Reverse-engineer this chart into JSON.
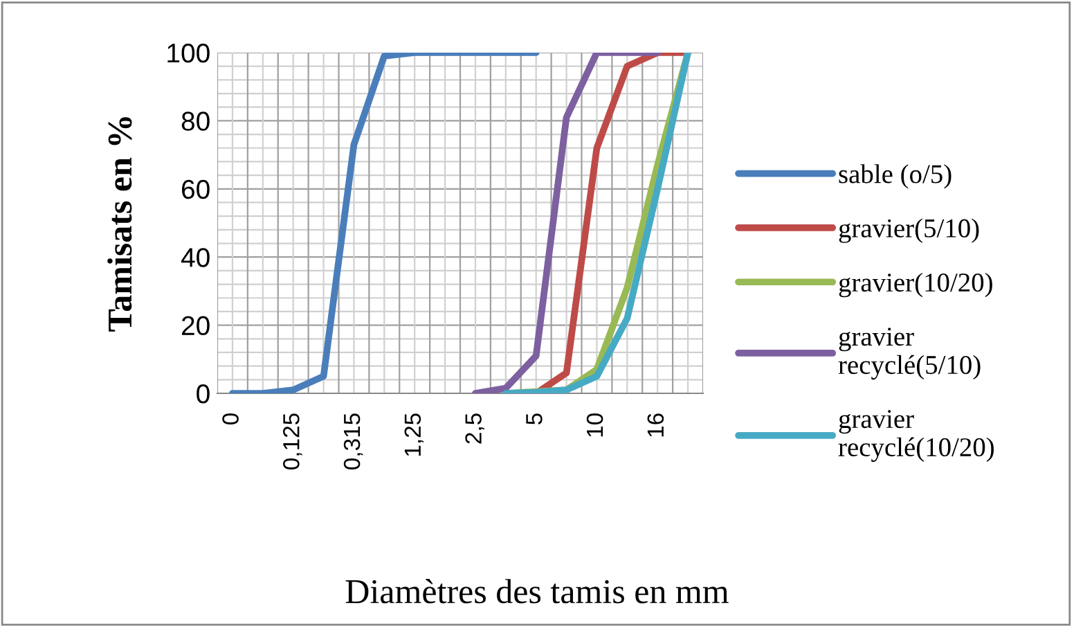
{
  "chart_data": {
    "type": "line",
    "xlabel": "Diamètres des tamis en mm",
    "ylabel": "Tamisats en %",
    "categories": [
      "0",
      null,
      "0,125",
      null,
      "0,315",
      null,
      "1,25",
      null,
      "2,5",
      null,
      "5",
      null,
      "10",
      null,
      "16",
      null
    ],
    "ylim": [
      0,
      100
    ],
    "yticks": [
      0,
      20,
      40,
      60,
      80,
      100
    ],
    "grid": true,
    "legend": "right",
    "marker": "none",
    "line_style": "solid",
    "series": [
      {
        "name": "sable (o/5)",
        "color": "#4a7ebb",
        "values": [
          0,
          0,
          1,
          5,
          73,
          99,
          100,
          100,
          100,
          100,
          100,
          null,
          null,
          null,
          null,
          null
        ]
      },
      {
        "name": "gravier(5/10)",
        "color": "#be4b48",
        "values": [
          null,
          null,
          null,
          null,
          null,
          null,
          null,
          null,
          null,
          null,
          0,
          6,
          72,
          96,
          100,
          100
        ]
      },
      {
        "name": "gravier(10/20)",
        "color": "#98b954",
        "values": [
          null,
          null,
          null,
          null,
          null,
          null,
          null,
          null,
          null,
          0,
          0.5,
          1,
          7,
          31,
          67,
          100
        ]
      },
      {
        "name": "gravier recyclé(5/10)",
        "color": "#7d60a0",
        "values": [
          null,
          null,
          null,
          null,
          null,
          null,
          null,
          null,
          0,
          1.5,
          11,
          81,
          100,
          100,
          100,
          null
        ]
      },
      {
        "name": "gravier recyclé(10/20)",
        "color": "#46aac5",
        "values": [
          null,
          null,
          null,
          null,
          null,
          null,
          null,
          null,
          null,
          0,
          0.3,
          1,
          5,
          22,
          60,
          100
        ]
      }
    ]
  }
}
